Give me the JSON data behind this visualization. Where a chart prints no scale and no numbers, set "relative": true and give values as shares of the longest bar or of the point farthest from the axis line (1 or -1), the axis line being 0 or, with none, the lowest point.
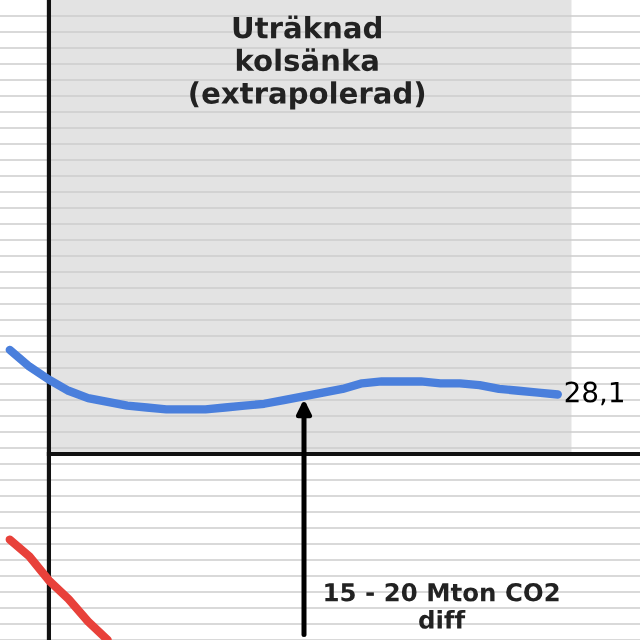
{
  "chart_data": {
    "type": "line",
    "relative": true,
    "categories": [
      null,
      null,
      null,
      null,
      null,
      null,
      null,
      null,
      null,
      null,
      null,
      null,
      null,
      null,
      null,
      null,
      null,
      null,
      null,
      null,
      null,
      null,
      null,
      null,
      null,
      null,
      null,
      null,
      null
    ],
    "series": [
      {
        "color": "#4a7fdc",
        "values": [
          0.56,
          0.47,
          0.4,
          0.34,
          0.3,
          0.28,
          0.26,
          0.25,
          0.24,
          0.24,
          0.24,
          0.25,
          0.26,
          0.27,
          0.29,
          0.31,
          0.33,
          0.35,
          0.38,
          0.39,
          0.39,
          0.39,
          0.38,
          0.38,
          0.37,
          0.35,
          0.34,
          0.33,
          0.32
        ]
      },
      {
        "color": "#e8413a",
        "values": [
          -0.46,
          -0.55,
          -0.68,
          -0.78,
          -0.9,
          -1.0,
          null,
          null,
          null,
          null,
          null,
          null,
          null,
          null,
          null,
          null,
          null,
          null,
          null,
          null,
          null,
          null,
          null,
          null,
          null,
          null,
          null,
          null,
          null
        ]
      }
    ],
    "annotations": [
      "Uträknad kolsänka (extrapolerad)",
      "15 - 20 Mton CO2 diff",
      "28,1"
    ],
    "grid": "y",
    "legend": false,
    "marker": "none",
    "line_style": "solid"
  }
}
